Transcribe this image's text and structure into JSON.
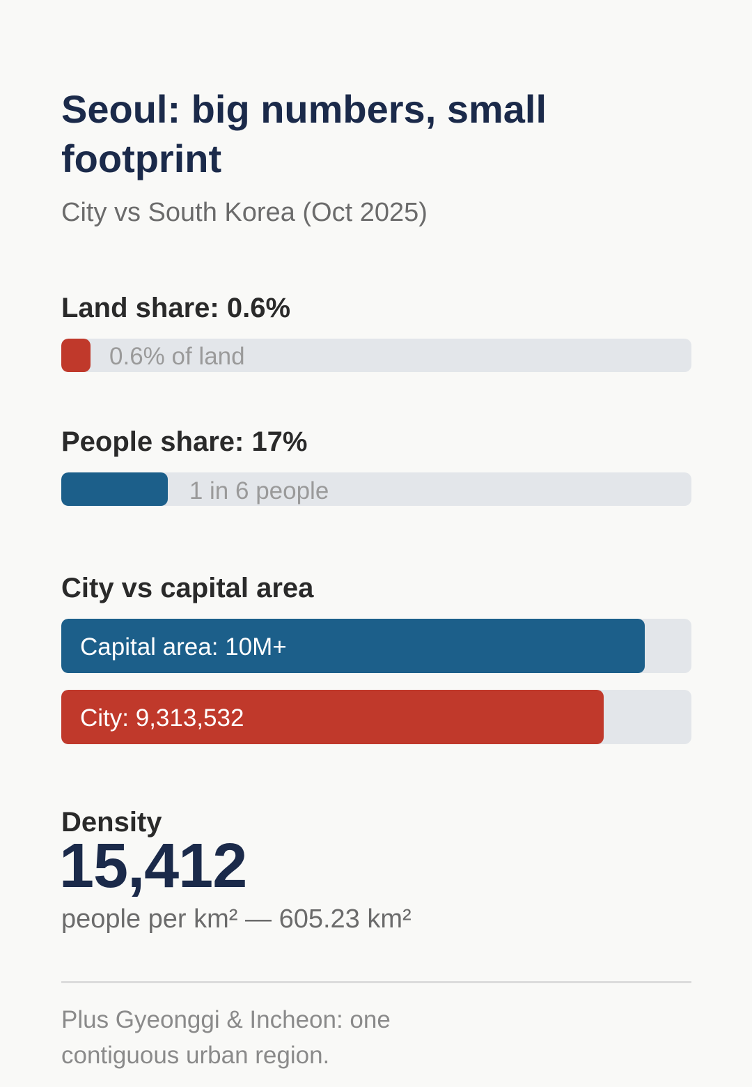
{
  "title": "Seoul: big numbers, small footprint",
  "subtitle": "City vs South Korea (Oct 2025)",
  "land": {
    "heading": "Land share: 0.6%",
    "bar_label": "0.6% of land",
    "share_percent": 0.6,
    "color": "#c0392b"
  },
  "people": {
    "heading": "People share: 17%",
    "bar_label": "1 in 6 people",
    "share_percent": 17,
    "color": "#1c5f8a"
  },
  "comparison": {
    "heading": "City vs capital area",
    "bars": [
      {
        "label": "Capital area: 10M+",
        "value": 10000000,
        "color": "#1c5f8a"
      },
      {
        "label": "City: 9,313,532",
        "value": 9313532,
        "color": "#c0392b"
      }
    ],
    "scale_max": 10800000
  },
  "density": {
    "label": "Density",
    "value": "15,412",
    "note": "people per km² — 605.23 km²"
  },
  "footnote": "Plus Gyeonggi & Incheon: one contiguous urban region."
}
